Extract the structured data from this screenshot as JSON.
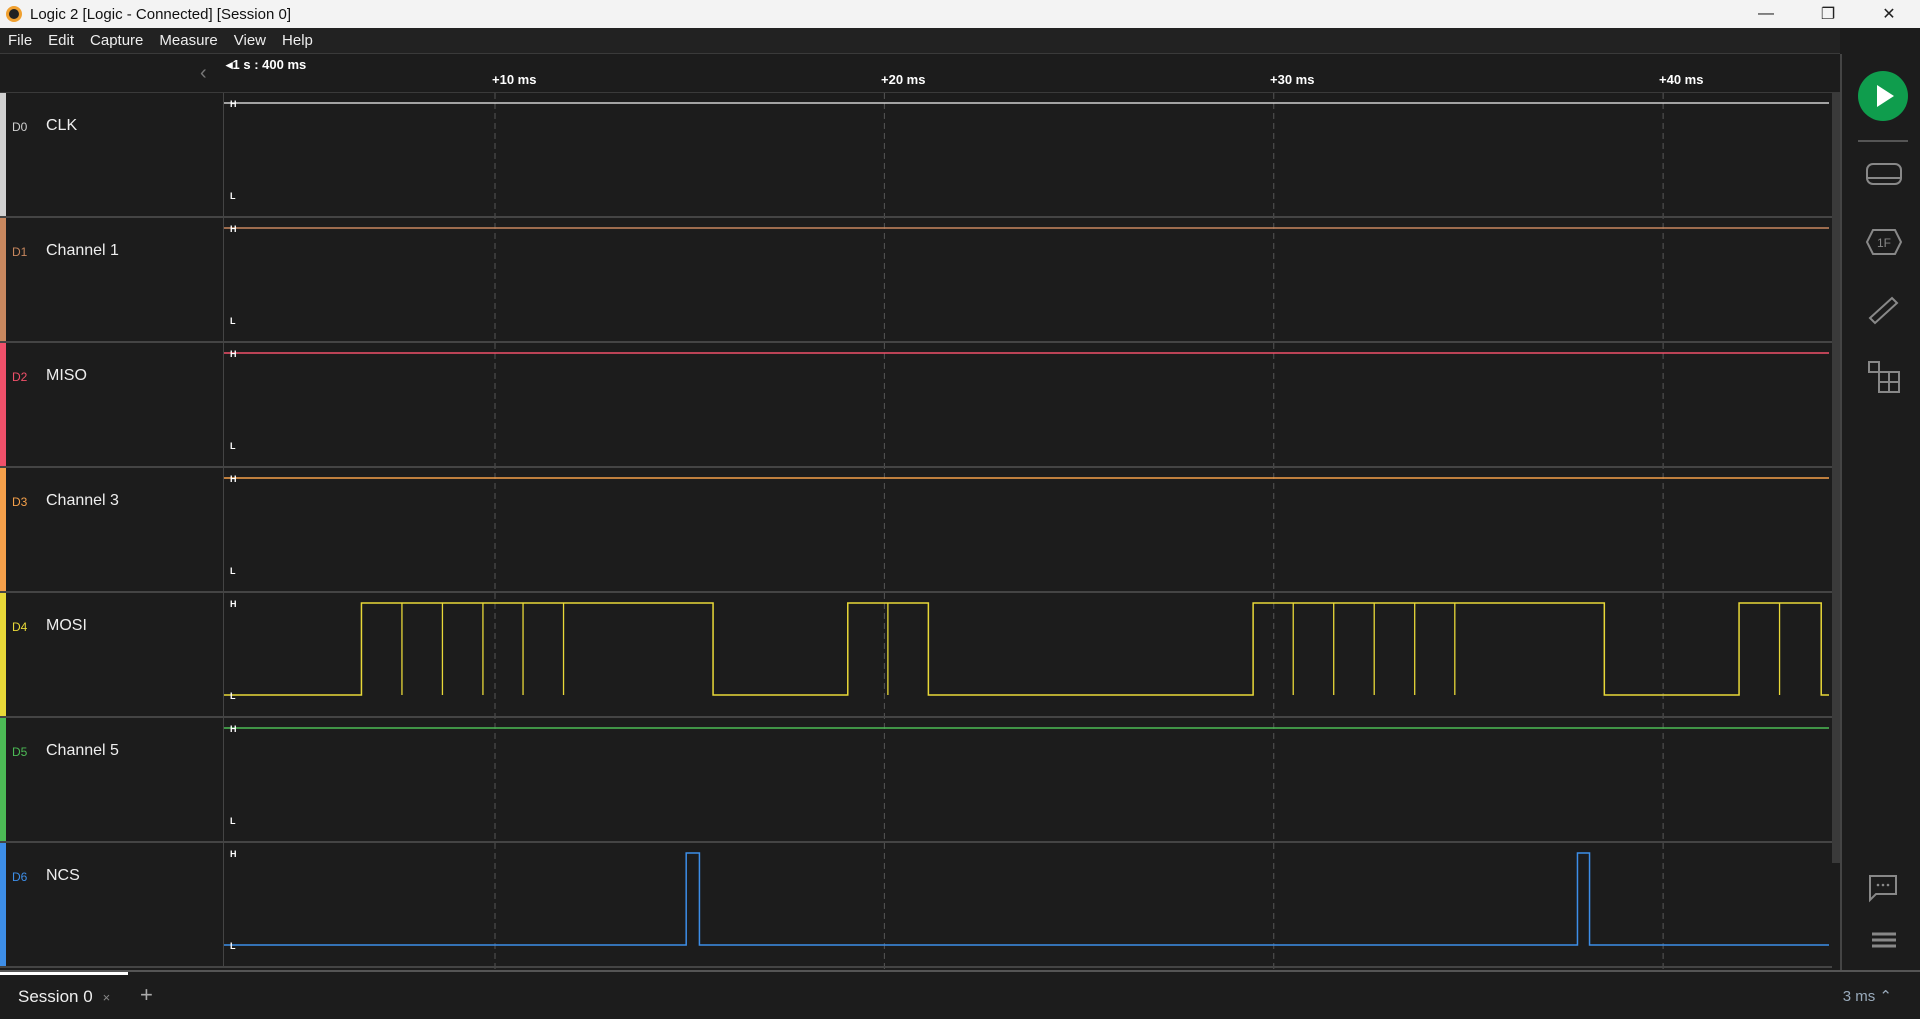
{
  "window": {
    "title": "Logic 2 [Logic - Connected] [Session 0]",
    "minimize": "—",
    "restore": "❐",
    "close": "✕"
  },
  "menu": [
    "File",
    "Edit",
    "Capture",
    "Measure",
    "View",
    "Help"
  ],
  "timeline": {
    "origin": "◂1 s : 400 ms",
    "ticks": [
      {
        "label": "+10 ms",
        "ms": 10
      },
      {
        "label": "+20 ms",
        "ms": 20
      },
      {
        "label": "+30 ms",
        "ms": 30
      },
      {
        "label": "+40 ms",
        "ms": 40
      }
    ],
    "view_start_ms": 3.04,
    "view_end_ms": 44.26
  },
  "level_labels": {
    "high": "H",
    "low": "L"
  },
  "channels": [
    {
      "id": "D0",
      "name": "CLK",
      "color": "#d0d0d0",
      "initial": 1,
      "edges": [],
      "glitches": []
    },
    {
      "id": "D1",
      "name": "Channel 1",
      "color": "#c8875e",
      "initial": 1,
      "edges": [],
      "glitches": []
    },
    {
      "id": "D2",
      "name": "MISO",
      "color": "#f0506a",
      "initial": 1,
      "edges": [],
      "glitches": []
    },
    {
      "id": "D3",
      "name": "Channel 3",
      "color": "#f5a04a",
      "initial": 1,
      "edges": [],
      "glitches": []
    },
    {
      "id": "D4",
      "name": "MOSI",
      "color": "#e8d838",
      "initial": 0,
      "edges": [
        6.57,
        15.6,
        19.06,
        21.13,
        29.47,
        38.49,
        41.95,
        44.06
      ],
      "glitches": [
        7.61,
        8.65,
        9.69,
        10.72,
        11.76,
        20.09,
        30.5,
        31.54,
        32.58,
        33.62,
        34.65,
        42.99
      ]
    },
    {
      "id": "D5",
      "name": "Channel 5",
      "color": "#4cbb55",
      "initial": 1,
      "edges": [],
      "glitches": []
    },
    {
      "id": "D6",
      "name": "NCS",
      "color": "#3d8ee8",
      "initial": 0,
      "edges": [
        14.91,
        15.25,
        37.8,
        38.11
      ],
      "glitches": []
    }
  ],
  "session": {
    "tab": "Session 0",
    "close": "×",
    "add": "+"
  },
  "zoom_readout": "3 ms ⌃",
  "accent": "#0f9d4d"
}
